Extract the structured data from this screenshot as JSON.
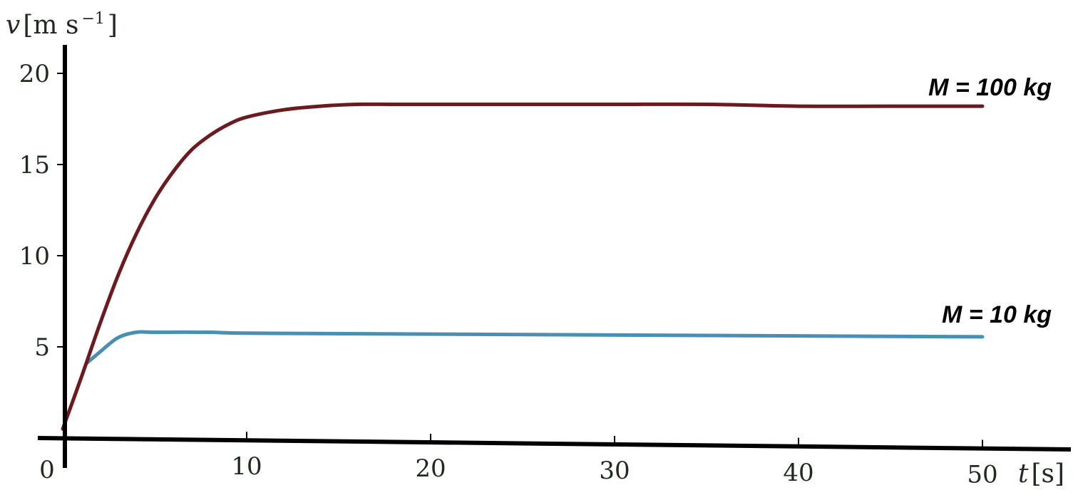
{
  "chart_data": {
    "type": "line",
    "xlabel_var": "t",
    "xlabel_unit": "[s]",
    "ylabel_var": "v",
    "ylabel_unit": "[m s",
    "ylabel_exp": "−1",
    "ylabel_close": "]",
    "origin_label": "0",
    "xlim": [
      0,
      50
    ],
    "ylim": [
      0,
      20
    ],
    "x_ticks": [
      10,
      20,
      30,
      40,
      50
    ],
    "x_tick_labels": [
      "10",
      "20",
      "30",
      "40",
      "50"
    ],
    "y_ticks": [
      5,
      10,
      15,
      20
    ],
    "y_tick_labels": [
      "5",
      "10",
      "15",
      "20"
    ],
    "grid": false,
    "series": [
      {
        "name": "M = 100 kg",
        "color": "#6b1a1f",
        "x": [
          0,
          1,
          2,
          3,
          4,
          5,
          6,
          7,
          8,
          9,
          10,
          12,
          14,
          16,
          18,
          20,
          25,
          30,
          35,
          40,
          45,
          50
        ],
        "y": [
          0.5,
          3.3,
          6.2,
          8.9,
          11.2,
          13.1,
          14.6,
          15.8,
          16.6,
          17.2,
          17.6,
          18.0,
          18.2,
          18.3,
          18.3,
          18.3,
          18.3,
          18.3,
          18.3,
          18.2,
          18.2,
          18.2
        ]
      },
      {
        "name": "M = 10 kg",
        "color": "#4a8fb3",
        "x": [
          1.3,
          2,
          3,
          4,
          5,
          8,
          10,
          20,
          30,
          40,
          50
        ],
        "y": [
          4.1,
          4.7,
          5.5,
          5.8,
          5.8,
          5.8,
          5.75,
          5.7,
          5.65,
          5.6,
          5.55
        ]
      }
    ]
  }
}
